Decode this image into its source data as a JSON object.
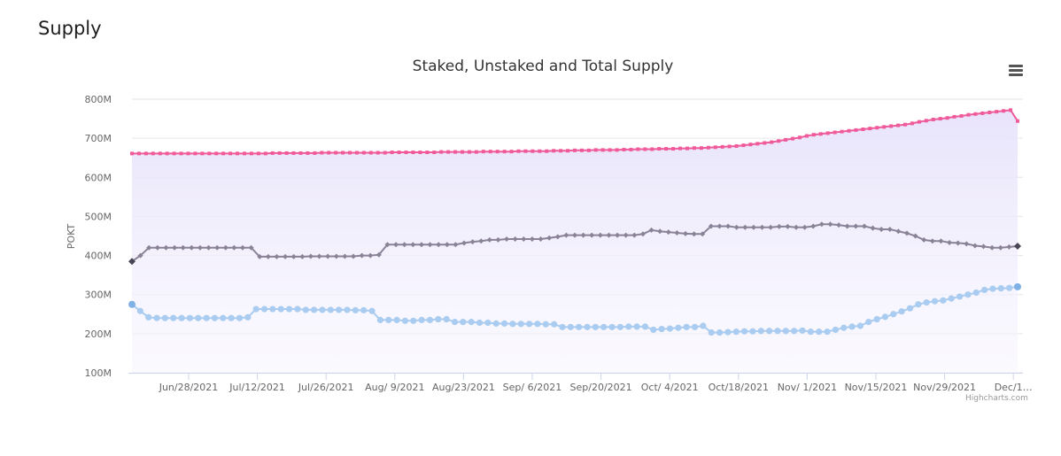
{
  "header": {
    "section_title": "Supply"
  },
  "chart_data": {
    "type": "area",
    "title": "Staked, Unstaked and Total Supply",
    "xlabel": "",
    "ylabel": "POKT",
    "ylim": [
      100,
      800
    ],
    "y_unit_suffix": "M",
    "y_ticks": [
      "100M",
      "200M",
      "300M",
      "400M",
      "500M",
      "600M",
      "700M",
      "800M"
    ],
    "x_tick_labels": [
      "Jun/28/2021",
      "Jul/12/2021",
      "Jul/26/2021",
      "Aug/ 9/2021",
      "Aug/23/2021",
      "Sep/ 6/2021",
      "Sep/20/2021",
      "Oct/ 4/2021",
      "Oct/18/2021",
      "Nov/ 1/2021",
      "Nov/15/2021",
      "Nov/29/2021",
      "Dec/1…"
    ],
    "grid": true,
    "legend": "none",
    "credits": "Highcharts.com",
    "x_range": [
      "2021-06-20",
      "2021-12-06"
    ],
    "series": [
      {
        "color": "#ef5b9a",
        "marker": "square",
        "values": [
          661,
          661,
          661,
          661,
          661,
          661,
          661,
          661,
          661,
          661,
          661,
          661,
          661,
          661,
          661,
          661,
          661,
          661,
          661,
          661,
          662,
          662,
          662,
          662,
          662,
          662,
          662,
          663,
          663,
          663,
          663,
          663,
          663,
          663,
          663,
          663,
          663,
          664,
          664,
          664,
          664,
          664,
          664,
          664,
          665,
          665,
          665,
          665,
          665,
          665,
          666,
          666,
          666,
          666,
          666,
          667,
          667,
          667,
          667,
          667,
          668,
          668,
          668,
          669,
          669,
          669,
          670,
          670,
          670,
          670,
          671,
          671,
          672,
          672,
          672,
          673,
          673,
          673,
          674,
          674,
          675,
          675,
          676,
          677,
          678,
          679,
          680,
          682,
          684,
          686,
          688,
          690,
          693,
          696,
          699,
          702,
          706,
          709,
          711,
          713,
          715,
          717,
          719,
          721,
          723,
          725,
          727,
          729,
          731,
          733,
          735,
          738,
          742,
          745,
          748,
          750,
          752,
          755,
          757,
          760,
          762,
          764,
          766,
          768,
          770,
          772,
          744
        ]
      },
      {
        "color": "#8a8397",
        "marker": "diamond",
        "values": [
          385,
          400,
          420,
          420,
          420,
          420,
          420,
          420,
          420,
          420,
          420,
          420,
          420,
          420,
          420,
          397,
          397,
          397,
          397,
          397,
          397,
          398,
          398,
          398,
          398,
          398,
          398,
          400,
          400,
          402,
          428,
          428,
          428,
          428,
          428,
          428,
          428,
          428,
          428,
          432,
          435,
          437,
          440,
          440,
          442,
          442,
          442,
          442,
          442,
          445,
          448,
          452,
          452,
          452,
          452,
          452,
          452,
          452,
          452,
          452,
          455,
          465,
          462,
          460,
          458,
          456,
          455,
          455,
          475,
          475,
          475,
          472,
          472,
          472,
          472,
          472,
          474,
          474,
          472,
          472,
          475,
          480,
          480,
          478,
          475,
          475,
          475,
          470,
          467,
          467,
          462,
          457,
          450,
          440,
          437,
          437,
          433,
          432,
          430,
          425,
          423,
          420,
          420,
          422,
          424
        ]
      },
      {
        "color": "#a9ccf0",
        "marker": "circle",
        "values": [
          275,
          258,
          242,
          240,
          240,
          240,
          240,
          240,
          240,
          240,
          240,
          240,
          240,
          240,
          242,
          263,
          263,
          263,
          263,
          263,
          263,
          261,
          261,
          261,
          261,
          261,
          261,
          260,
          260,
          258,
          235,
          235,
          235,
          233,
          233,
          235,
          235,
          237,
          237,
          230,
          230,
          230,
          228,
          228,
          226,
          226,
          225,
          225,
          225,
          225,
          224,
          224,
          217,
          217,
          217,
          217,
          217,
          217,
          217,
          217,
          218,
          218,
          218,
          210,
          212,
          213,
          215,
          217,
          217,
          220,
          203,
          203,
          204,
          205,
          206,
          206,
          207,
          207,
          207,
          207,
          207,
          208,
          205,
          205,
          205,
          210,
          215,
          218,
          220,
          230,
          237,
          243,
          250,
          257,
          265,
          275,
          280,
          283,
          285,
          290,
          295,
          300,
          305,
          312,
          315,
          316,
          317,
          320
        ]
      }
    ]
  }
}
